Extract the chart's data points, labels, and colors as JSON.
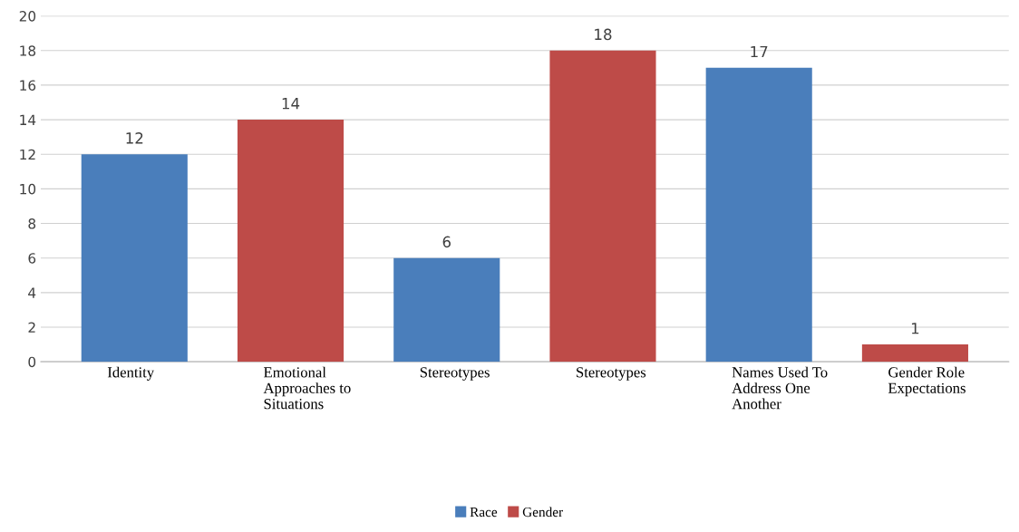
{
  "chart_data": {
    "type": "bar",
    "categories": [
      "Identity",
      "Emotional Approaches to Situations",
      "Stereotypes",
      "Stereotypes",
      "Names Used To Address One Another",
      "Gender Role Expectations"
    ],
    "series": [
      {
        "name": "Race",
        "color": "#4a7ebb",
        "values": [
          12,
          null,
          6,
          null,
          17,
          null
        ]
      },
      {
        "name": "Gender",
        "color": "#be4b48",
        "values": [
          null,
          14,
          null,
          18,
          null,
          1
        ]
      }
    ],
    "ylim": [
      0,
      20
    ],
    "yticks": [
      0,
      2,
      4,
      6,
      8,
      10,
      12,
      14,
      16,
      18,
      20
    ],
    "grid": "y",
    "legend": "bottom",
    "data_labels": true
  }
}
